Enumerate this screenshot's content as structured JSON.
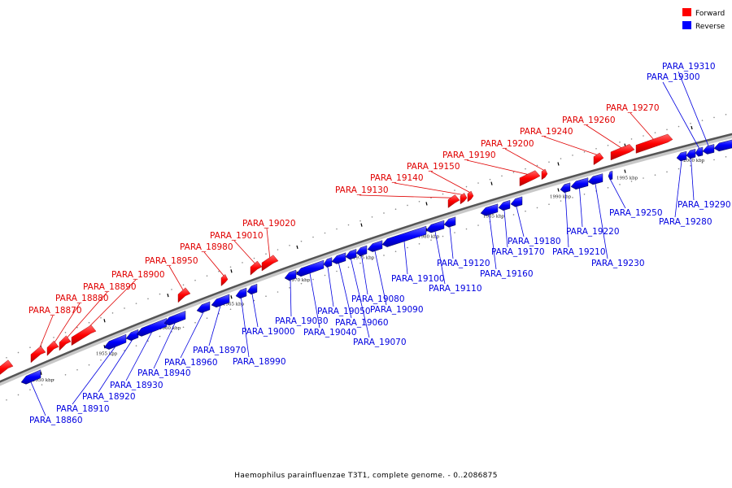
{
  "legend": {
    "items": [
      {
        "label": "Forward",
        "color": "#ff0000"
      },
      {
        "label": "Reverse",
        "color": "#0000ff"
      }
    ]
  },
  "caption": "Haemophilus parainfluenzae T3T1, complete genome. - 0..2086875",
  "ticks": [
    "1950 kbp",
    "1955 kbp",
    "1960 kbp",
    "1965 kbp",
    "1970 kbp",
    "1975 kbp",
    "1980 kbp",
    "1985 kbp",
    "1990 kbp",
    "1995 kbp",
    "2000 kbp"
  ],
  "genes": {
    "forward": [
      "PARA_18870",
      "PARA_18880",
      "PARA_18890",
      "PARA_18900",
      "PARA_18950",
      "PARA_18980",
      "PARA_19010",
      "PARA_19020",
      "PARA_19130",
      "PARA_19140",
      "PARA_19150",
      "PARA_19190",
      "PARA_19200",
      "PARA_19240",
      "PARA_19260",
      "PARA_19270"
    ],
    "reverse": [
      "PARA_18860",
      "PARA_18910",
      "PARA_18920",
      "PARA_18930",
      "PARA_18940",
      "PARA_18960",
      "PARA_18970",
      "PARA_18990",
      "PARA_19000",
      "PARA_19030",
      "PARA_19040",
      "PARA_19050",
      "PARA_19060",
      "PARA_19070",
      "PARA_19080",
      "PARA_19090",
      "PARA_19100",
      "PARA_19110",
      "PARA_19120",
      "PARA_19160",
      "PARA_19170",
      "PARA_19180",
      "PARA_19210",
      "PARA_19220",
      "PARA_19230",
      "PARA_19250",
      "PARA_19280",
      "PARA_19290",
      "PARA_19300",
      "PARA_19310"
    ]
  }
}
